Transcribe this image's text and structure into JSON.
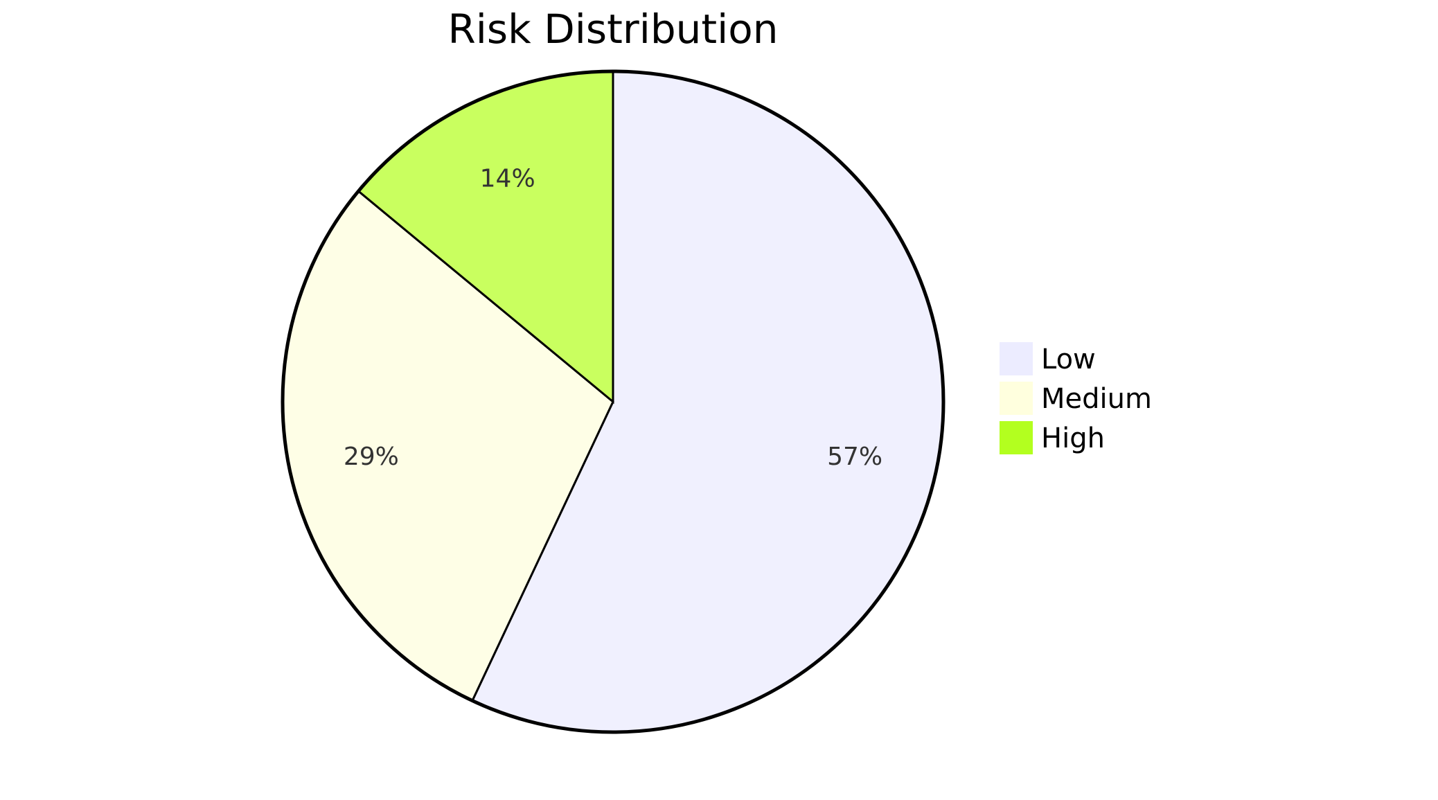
{
  "chart_data": {
    "type": "pie",
    "title": "Risk Distribution",
    "legend_position": "right",
    "slices": [
      {
        "label": "Low",
        "value": 57,
        "display": "57%",
        "color": "#f0f0fe"
      },
      {
        "label": "Medium",
        "value": 29,
        "display": "29%",
        "color": "#fefee6"
      },
      {
        "label": "High",
        "value": 14,
        "display": "14%",
        "color": "#c9ff5f"
      }
    ],
    "legend": [
      {
        "label": "Low",
        "color": "#ececff"
      },
      {
        "label": "Medium",
        "color": "#ffffde"
      },
      {
        "label": "High",
        "color": "#b3ff1f"
      }
    ],
    "stroke_color": "#000000"
  }
}
